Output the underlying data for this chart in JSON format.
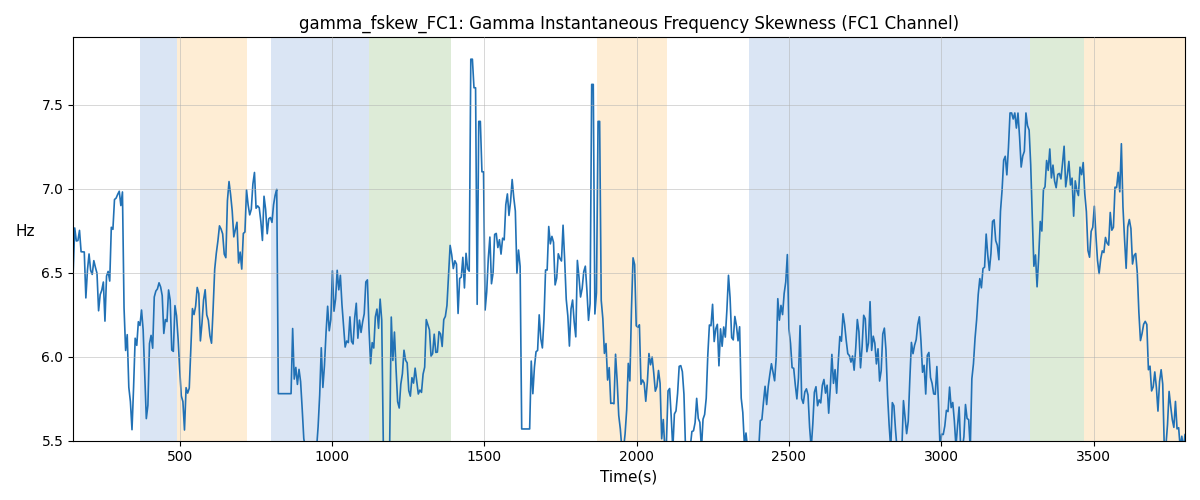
{
  "title": "gamma_fskew_FC1: Gamma Instantaneous Frequency Skewness (FC1 Channel)",
  "xlabel": "Time(s)",
  "ylabel": "Hz",
  "ylim": [
    5.5,
    7.9
  ],
  "xlim": [
    150,
    3800
  ],
  "line_color": "#2171b5",
  "line_width": 1.2,
  "background_color": "#ffffff",
  "grid_color": "#b0b0b0",
  "bands": [
    {
      "xmin": 370,
      "xmax": 490,
      "color": "#aec6e8",
      "alpha": 0.45
    },
    {
      "xmin": 490,
      "xmax": 720,
      "color": "#fdd9a0",
      "alpha": 0.45
    },
    {
      "xmin": 800,
      "xmax": 940,
      "color": "#aec6e8",
      "alpha": 0.45
    },
    {
      "xmin": 940,
      "xmax": 1120,
      "color": "#aec6e8",
      "alpha": 0.45
    },
    {
      "xmin": 1120,
      "xmax": 1390,
      "color": "#b5d4a8",
      "alpha": 0.45
    },
    {
      "xmin": 1870,
      "xmax": 2100,
      "color": "#fdd9a0",
      "alpha": 0.45
    },
    {
      "xmin": 2370,
      "xmax": 2490,
      "color": "#aec6e8",
      "alpha": 0.45
    },
    {
      "xmin": 2490,
      "xmax": 2700,
      "color": "#aec6e8",
      "alpha": 0.45
    },
    {
      "xmin": 2700,
      "xmax": 2870,
      "color": "#aec6e8",
      "alpha": 0.45
    },
    {
      "xmin": 2870,
      "xmax": 3070,
      "color": "#aec6e8",
      "alpha": 0.45
    },
    {
      "xmin": 3070,
      "xmax": 3290,
      "color": "#aec6e8",
      "alpha": 0.45
    },
    {
      "xmin": 3290,
      "xmax": 3470,
      "color": "#b5d4a8",
      "alpha": 0.45
    },
    {
      "xmin": 3470,
      "xmax": 3800,
      "color": "#fdd9a0",
      "alpha": 0.45
    }
  ],
  "t_start": 150,
  "t_end": 3800,
  "n_pts": 700,
  "mean_reversion_theta": 0.03,
  "sigma": 0.18,
  "seed": 7
}
